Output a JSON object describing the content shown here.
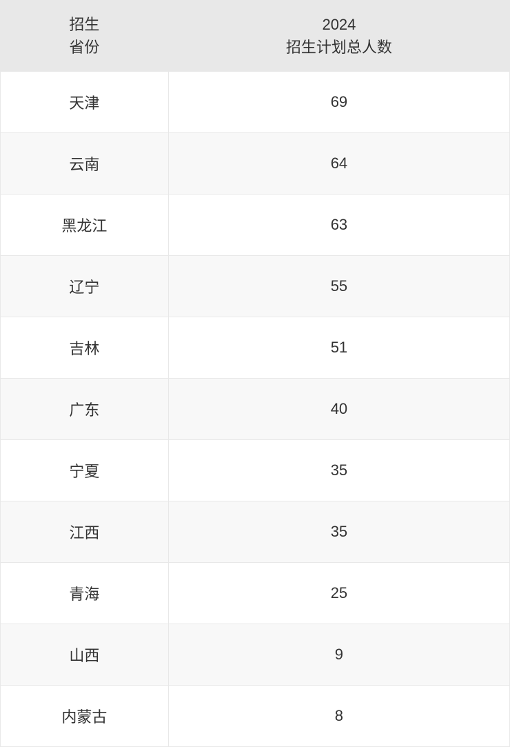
{
  "table": {
    "columns": [
      {
        "line1": "招生",
        "line2": "省份"
      },
      {
        "line1": "2024",
        "line2": "招生计划总人数"
      }
    ],
    "rows": [
      {
        "province": "天津",
        "count": "69"
      },
      {
        "province": "云南",
        "count": "64"
      },
      {
        "province": "黑龙江",
        "count": "63"
      },
      {
        "province": "辽宁",
        "count": "55"
      },
      {
        "province": "吉林",
        "count": "51"
      },
      {
        "province": "广东",
        "count": "40"
      },
      {
        "province": "宁夏",
        "count": "35"
      },
      {
        "province": "江西",
        "count": "35"
      },
      {
        "province": "青海",
        "count": "25"
      },
      {
        "province": "山西",
        "count": "9"
      },
      {
        "province": "内蒙古",
        "count": "8"
      }
    ],
    "header_bg": "#e8e8e8",
    "row_odd_bg": "#ffffff",
    "row_even_bg": "#f8f8f8",
    "border_color": "#e8e8e8",
    "text_color": "#333333",
    "font_size": 22,
    "col_widths": [
      "33%",
      "67%"
    ]
  }
}
